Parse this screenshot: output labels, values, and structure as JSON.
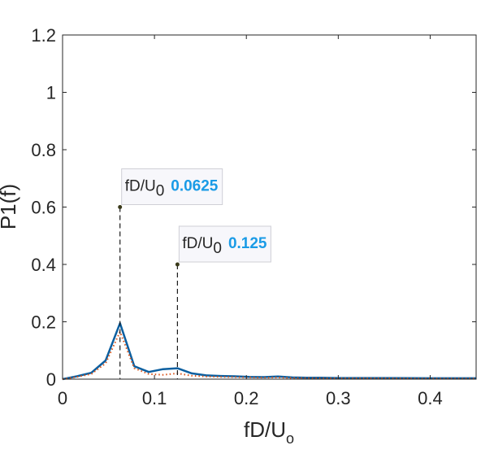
{
  "chart_data": {
    "type": "line",
    "title": "",
    "xlabel": "fD/U",
    "xlabel_sub": "o",
    "ylabel": "P1(f)",
    "xlim": [
      0,
      0.45
    ],
    "ylim": [
      0,
      1.2
    ],
    "xticks": [
      0,
      0.1,
      0.2,
      0.3,
      0.4
    ],
    "xtick_labels": [
      "0",
      "0.1",
      "0.2",
      "0.3",
      "0.4"
    ],
    "yticks": [
      0,
      0.2,
      0.4,
      0.6,
      0.8,
      1.0,
      1.2
    ],
    "ytick_labels": [
      "0",
      "0.2",
      "0.4",
      "0.6",
      "0.8",
      "1",
      "1.2"
    ],
    "grid": false,
    "series": [
      {
        "color": "#0b5fa0",
        "style": "solid",
        "x": [
          0,
          0.0156,
          0.0313,
          0.0469,
          0.0625,
          0.0781,
          0.0938,
          0.1094,
          0.125,
          0.1406,
          0.1563,
          0.1719,
          0.1875,
          0.2031,
          0.2188,
          0.2344,
          0.25,
          0.2656,
          0.2813,
          0.3,
          0.35,
          0.4,
          0.45
        ],
        "y": [
          0.0,
          0.01,
          0.022,
          0.065,
          0.195,
          0.045,
          0.025,
          0.035,
          0.038,
          0.02,
          0.013,
          0.011,
          0.01,
          0.008,
          0.007,
          0.009,
          0.006,
          0.005,
          0.005,
          0.004,
          0.004,
          0.003,
          0.003
        ]
      },
      {
        "color": "#d95319",
        "style": "dotted",
        "x": [
          0,
          0.0156,
          0.0313,
          0.0469,
          0.0625,
          0.0781,
          0.0938,
          0.1094,
          0.125,
          0.1406,
          0.1563,
          0.1719,
          0.1875,
          0.2031,
          0.2188,
          0.2344,
          0.25,
          0.2656,
          0.2813,
          0.3,
          0.35,
          0.4,
          0.45
        ],
        "y": [
          0.0,
          0.008,
          0.018,
          0.055,
          0.165,
          0.038,
          0.018,
          0.015,
          0.02,
          0.012,
          0.009,
          0.008,
          0.007,
          0.006,
          0.005,
          0.006,
          0.004,
          0.004,
          0.003,
          0.003,
          0.003,
          0.002,
          0.002
        ]
      }
    ],
    "markers": [
      {
        "x": 0.0625,
        "y": 0.6,
        "label": "fD/U",
        "label_sub": "0",
        "value": "0.0625"
      },
      {
        "x": 0.125,
        "y": 0.4,
        "label": "fD/U",
        "label_sub": "0",
        "value": "0.125"
      }
    ],
    "accent_color": "#1a9be6"
  }
}
